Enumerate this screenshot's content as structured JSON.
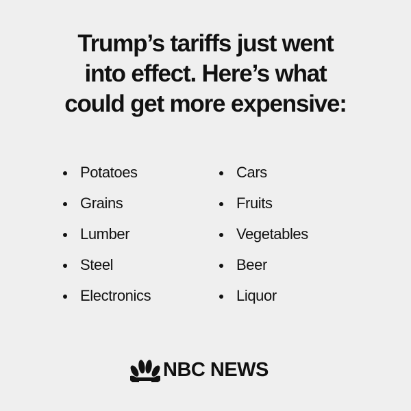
{
  "title_lines": [
    "Trump’s tariffs just went",
    "into effect. Here’s what",
    "could get more expensive:"
  ],
  "list": {
    "left": [
      "Potatoes",
      "Grains",
      "Lumber",
      "Steel",
      "Electronics"
    ],
    "right": [
      "Cars",
      "Fruits",
      "Vegetables",
      "Beer",
      "Liquor"
    ]
  },
  "logo": {
    "text": "NBC NEWS"
  }
}
